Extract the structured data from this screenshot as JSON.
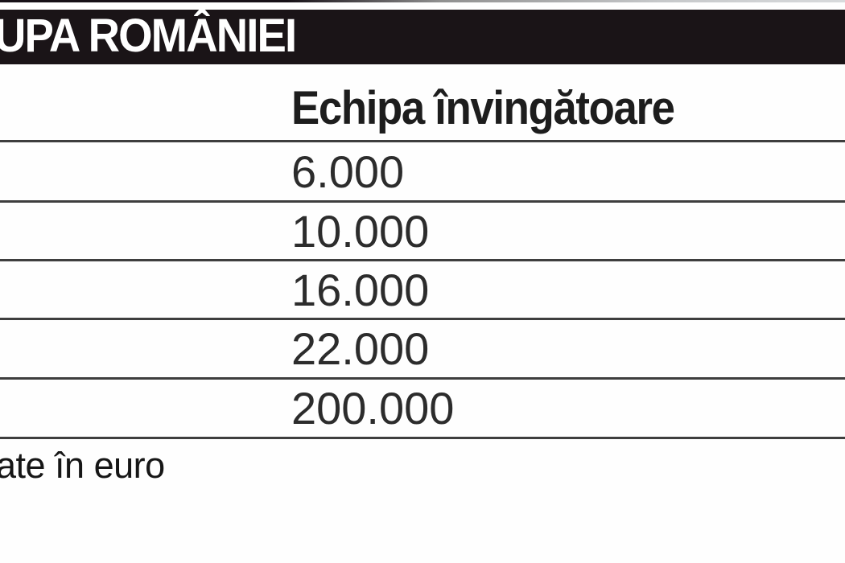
{
  "header": {
    "title": "UPA ROMÂNIEI"
  },
  "table": {
    "column_header": "Echipa învingătoare",
    "values": [
      "6.000",
      "10.000",
      "16.000",
      "22.000",
      "200.000"
    ]
  },
  "footer": {
    "note": "ate în euro"
  },
  "colors": {
    "banner_bg": "#1a1417",
    "banner_text": "#ffffff",
    "rule": "#3e3e3e",
    "body_text": "#2c2c2c"
  },
  "chart_data": {
    "type": "table",
    "title": "UPA ROMÂNIEI",
    "columns": [
      "Echipa învingătoare"
    ],
    "rows": [
      [
        "6.000"
      ],
      [
        "10.000"
      ],
      [
        "16.000"
      ],
      [
        "22.000"
      ],
      [
        "200.000"
      ]
    ],
    "values_numeric": [
      6000,
      10000,
      16000,
      22000,
      200000
    ],
    "unit": "euro",
    "footnote": "ate în euro",
    "layout": "single visible column, left column cropped out of frame, horizontal rules between rows, no vertical rules"
  }
}
